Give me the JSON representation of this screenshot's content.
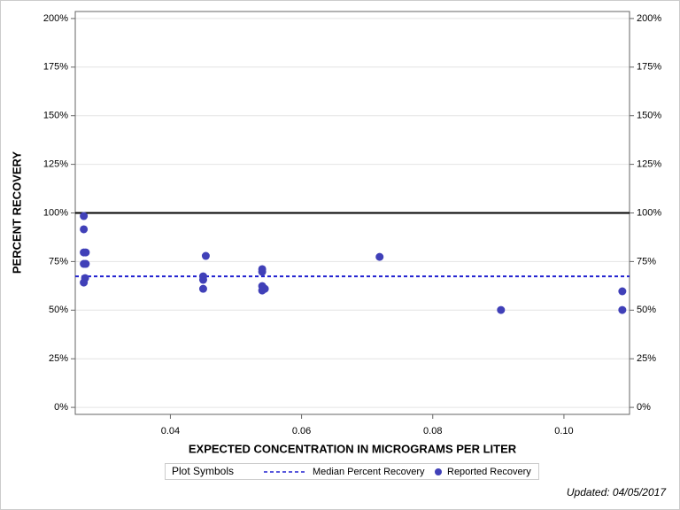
{
  "chart_data": {
    "type": "scatter",
    "xlabel": "EXPECTED CONCENTRATION IN MICROGRAMS PER LITER",
    "ylabel": "PERCENT RECOVERY",
    "xlim": [
      0.0255,
      0.11
    ],
    "ylim": [
      -3.6,
      203.6
    ],
    "xticks": [
      0.04,
      0.06,
      0.08,
      {
        "value": 0.1,
        "label": "0.10"
      }
    ],
    "yticks": [
      {
        "value": 0,
        "label": "0%"
      },
      {
        "value": 25,
        "label": "25%"
      },
      {
        "value": 50,
        "label": "50%"
      },
      {
        "value": 75,
        "label": "75%"
      },
      {
        "value": 100,
        "label": "100%"
      },
      {
        "value": 125,
        "label": "125%"
      },
      {
        "value": 150,
        "label": "150%"
      },
      {
        "value": 175,
        "label": "175%"
      },
      {
        "value": 200,
        "label": "200%"
      }
    ],
    "grid": true,
    "reference_line": 100,
    "legend_title": "Plot Symbols",
    "series": [
      {
        "name": "Median Percent Recovery",
        "color": "#2020d0",
        "type": "hline",
        "value": 67.4
      },
      {
        "name": "Reported Recovery",
        "color": "#4040b8",
        "x": [
          0.0268,
          0.0268,
          0.0268,
          0.0271,
          0.0268,
          0.0271,
          0.027,
          0.0268,
          0.045,
          0.045,
          0.045,
          0.0454,
          0.054,
          0.054,
          0.054,
          0.054,
          0.0544,
          0.0719,
          0.0904,
          0.1089,
          0.1089
        ],
        "values": [
          98.4,
          91.6,
          79.7,
          79.7,
          73.8,
          73.8,
          66.5,
          64.2,
          67.4,
          65.6,
          61.0,
          77.9,
          71.1,
          69.7,
          62.4,
          60.1,
          61.0,
          77.4,
          50.1,
          59.7,
          50.1
        ]
      }
    ],
    "footnote": "Updated: 04/05/2017"
  }
}
